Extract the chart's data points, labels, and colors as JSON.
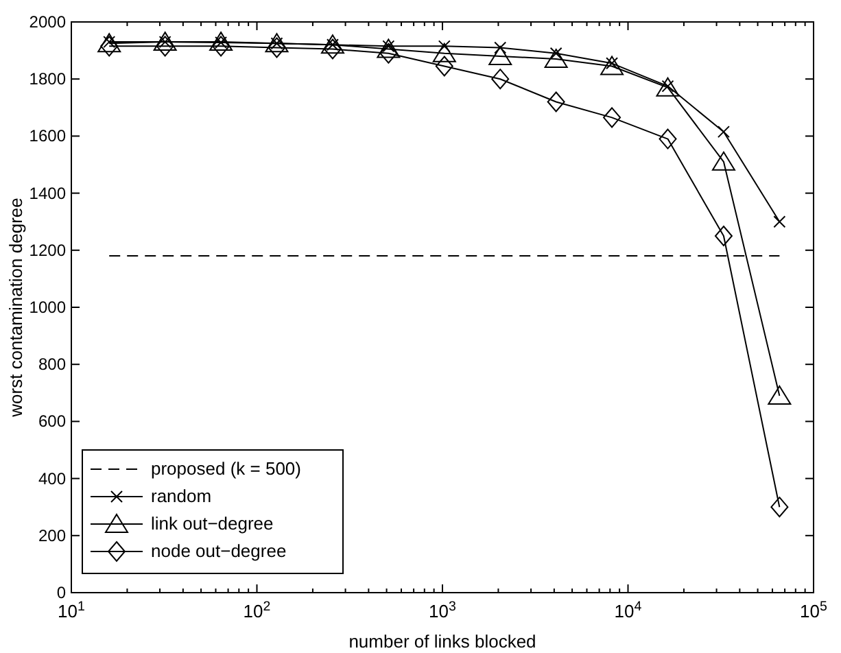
{
  "chart_data": {
    "type": "line",
    "xlabel": "number of links blocked",
    "ylabel": "worst contamination degree",
    "log": "x",
    "xlim": [
      10,
      100000
    ],
    "xticks": [
      {
        "value": 10,
        "label": "10$^{1}$"
      },
      {
        "value": 100,
        "label": "10$^{2}$"
      },
      {
        "value": 1000,
        "label": "10$^{3}$"
      },
      {
        "value": 10000,
        "label": "10$^{4}$"
      },
      {
        "value": 100000,
        "label": "10$^{5}$"
      }
    ],
    "ylim": [
      0,
      2000
    ],
    "yticks": [
      0,
      200,
      400,
      600,
      800,
      1000,
      1200,
      1400,
      1600,
      1800,
      2000
    ],
    "grid": false,
    "legend": "bottom left",
    "x": [
      16,
      32,
      64,
      128,
      256,
      512,
      1024,
      2048,
      4096,
      8192,
      16384,
      32768,
      65536
    ],
    "series": [
      {
        "name": "proposed (k = 500)",
        "color": "#000000",
        "x": [
          16,
          65536
        ],
        "values": [
          1180,
          1180
        ],
        "marker": "none",
        "line_style": "dashed"
      },
      {
        "name": "random",
        "color": "#000000",
        "values": [
          1930,
          1930,
          1928,
          1925,
          1920,
          1915,
          1915,
          1910,
          1890,
          1855,
          1775,
          1615,
          1300
        ],
        "marker": "cross",
        "line_style": "solid"
      },
      {
        "name": "link out−degree",
        "color": "#000000",
        "values": [
          1925,
          1930,
          1930,
          1925,
          1920,
          1905,
          1890,
          1880,
          1870,
          1845,
          1770,
          1510,
          690
        ],
        "marker": "triangle",
        "line_style": "solid"
      },
      {
        "name": "node out−degree",
        "color": "#000000",
        "values": [
          1915,
          1915,
          1915,
          1910,
          1905,
          1890,
          1845,
          1800,
          1720,
          1665,
          1590,
          1250,
          300
        ],
        "marker": "diamond",
        "line_style": "solid"
      }
    ]
  }
}
